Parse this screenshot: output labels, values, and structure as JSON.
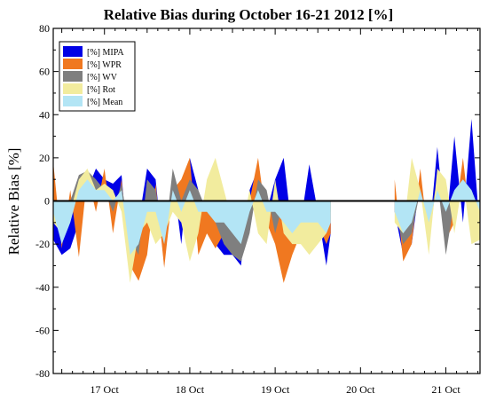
{
  "chart_data": {
    "type": "area",
    "title": "Relative Bias during October 16-21  2012  [%]",
    "xlabel": "",
    "ylabel": "Relative Bias [%]",
    "ylim": [
      -80,
      80
    ],
    "yticks": [
      -80,
      -60,
      -40,
      -20,
      0,
      20,
      40,
      60,
      80
    ],
    "xlim_days": [
      16.4,
      21.4
    ],
    "xticks": [
      {
        "day": 17.0,
        "label": "17 Oct"
      },
      {
        "day": 18.0,
        "label": "18 Oct"
      },
      {
        "day": 19.0,
        "label": "19 Oct"
      },
      {
        "day": 20.0,
        "label": "20 Oct"
      },
      {
        "day": 21.0,
        "label": "21 Oct"
      }
    ],
    "zero_line": true,
    "legend_position": "top-left",
    "series": [
      {
        "name": "[%] MIPA",
        "color": "#0000e6",
        "x": [
          16.4,
          16.5,
          16.6,
          16.7,
          16.8,
          16.9,
          17.0,
          17.1,
          17.2,
          17.3,
          17.4,
          17.5,
          17.6,
          17.7,
          17.8,
          17.9,
          18.0,
          18.1,
          18.2,
          18.3,
          18.4,
          18.5,
          18.6,
          18.7,
          18.8,
          18.9,
          19.0,
          19.1,
          19.2,
          19.3,
          19.4,
          19.5,
          19.6,
          19.65,
          20.35,
          20.4,
          20.5,
          20.6,
          20.7,
          20.8,
          20.9,
          21.0,
          21.1,
          21.2,
          21.3,
          21.4
        ],
        "y": [
          -18,
          -25,
          -22,
          -10,
          5,
          15,
          10,
          8,
          12,
          -35,
          -10,
          15,
          10,
          -30,
          12,
          -20,
          20,
          5,
          -15,
          -20,
          -25,
          -25,
          -30,
          5,
          15,
          -5,
          10,
          20,
          -15,
          -10,
          17,
          -5,
          -30,
          -15,
          null,
          -5,
          -25,
          -20,
          10,
          -18,
          25,
          -15,
          30,
          -10,
          38,
          -15
        ]
      },
      {
        "name": "[%] WPR",
        "color": "#f07820",
        "x": [
          16.4,
          16.5,
          16.6,
          16.7,
          16.8,
          16.9,
          17.0,
          17.1,
          17.2,
          17.3,
          17.4,
          17.5,
          17.6,
          17.7,
          17.8,
          17.9,
          18.0,
          18.1,
          18.2,
          18.3,
          18.4,
          18.5,
          18.6,
          18.7,
          18.8,
          18.9,
          19.0,
          19.1,
          19.2,
          19.3,
          19.4,
          19.5,
          19.6,
          19.65,
          20.35,
          20.4,
          20.5,
          20.6,
          20.7,
          20.8,
          20.9,
          21.0,
          21.1,
          21.2,
          21.3,
          21.4
        ],
        "y": [
          18,
          -22,
          5,
          -26,
          12,
          -5,
          15,
          -15,
          10,
          -30,
          -37,
          -25,
          8,
          -31,
          5,
          10,
          20,
          -25,
          -15,
          -22,
          -15,
          -20,
          -25,
          0,
          20,
          -10,
          -20,
          -38,
          -25,
          -15,
          -20,
          -10,
          -20,
          -15,
          null,
          10,
          -28,
          -20,
          15,
          -20,
          12,
          -18,
          -10,
          20,
          -15,
          -10
        ]
      },
      {
        "name": "[%] WV",
        "color": "#7f7f7f",
        "x": [
          16.4,
          16.5,
          16.6,
          16.7,
          16.8,
          16.9,
          17.0,
          17.1,
          17.2,
          17.3,
          17.4,
          17.5,
          17.6,
          17.7,
          17.8,
          17.9,
          18.0,
          18.1,
          18.2,
          18.3,
          18.4,
          18.5,
          18.6,
          18.7,
          18.8,
          18.9,
          19.0,
          19.1,
          19.2,
          19.3,
          19.4,
          19.5,
          19.6,
          19.65,
          20.35,
          20.4,
          20.5,
          20.6,
          20.7,
          20.8,
          20.9,
          21.0,
          21.1,
          21.2,
          21.3,
          21.4
        ],
        "y": [
          -5,
          -15,
          0,
          12,
          14,
          10,
          5,
          -5,
          8,
          -18,
          -25,
          10,
          5,
          -20,
          15,
          0,
          10,
          5,
          -5,
          -10,
          -20,
          -25,
          -28,
          -15,
          10,
          5,
          -15,
          0,
          -15,
          -5,
          -10,
          -5,
          -10,
          -5,
          null,
          -5,
          -20,
          -15,
          5,
          -10,
          10,
          -25,
          0,
          10,
          5,
          -5
        ]
      },
      {
        "name": "[%] Rot",
        "color": "#f2ec9e",
        "x": [
          16.4,
          16.5,
          16.6,
          16.7,
          16.8,
          16.9,
          17.0,
          17.1,
          17.2,
          17.3,
          17.4,
          17.5,
          17.6,
          17.7,
          17.8,
          17.9,
          18.0,
          18.1,
          18.2,
          18.3,
          18.4,
          18.5,
          18.6,
          18.7,
          18.8,
          18.9,
          19.0,
          19.1,
          19.2,
          19.3,
          19.4,
          19.5,
          19.6,
          19.65,
          20.35,
          20.4,
          20.5,
          20.6,
          20.7,
          20.8,
          20.9,
          21.0,
          21.1,
          21.2,
          21.3,
          21.4
        ],
        "y": [
          -10,
          -15,
          -5,
          10,
          15,
          5,
          8,
          5,
          -5,
          -38,
          -15,
          -10,
          -20,
          -15,
          -5,
          -10,
          -28,
          -15,
          10,
          20,
          5,
          -10,
          -15,
          5,
          -15,
          -20,
          10,
          -15,
          -20,
          -20,
          -25,
          -20,
          -15,
          -10,
          null,
          -10,
          -15,
          20,
          5,
          -25,
          15,
          10,
          -15,
          10,
          -20,
          -18
        ]
      },
      {
        "name": "[%] Mean",
        "color": "#b3e5f5",
        "x": [
          16.4,
          16.5,
          16.6,
          16.7,
          16.8,
          16.9,
          17.0,
          17.1,
          17.2,
          17.3,
          17.4,
          17.5,
          17.6,
          17.7,
          17.8,
          17.9,
          18.0,
          18.1,
          18.2,
          18.3,
          18.4,
          18.5,
          18.6,
          18.7,
          18.8,
          18.9,
          19.0,
          19.1,
          19.2,
          19.3,
          19.4,
          19.5,
          19.6,
          19.65,
          20.35,
          20.4,
          20.5,
          20.6,
          20.7,
          20.8,
          20.9,
          21.0,
          21.1,
          21.2,
          21.3,
          21.4
        ],
        "y": [
          -5,
          -20,
          -10,
          5,
          10,
          5,
          5,
          0,
          5,
          -25,
          -20,
          -5,
          -5,
          -20,
          5,
          -5,
          5,
          -5,
          -5,
          -10,
          -10,
          -15,
          -20,
          -5,
          5,
          -5,
          -5,
          -10,
          -15,
          -10,
          -10,
          -10,
          -15,
          -10,
          null,
          -5,
          -15,
          -10,
          5,
          -10,
          5,
          -5,
          5,
          10,
          5,
          -5
        ]
      }
    ]
  }
}
